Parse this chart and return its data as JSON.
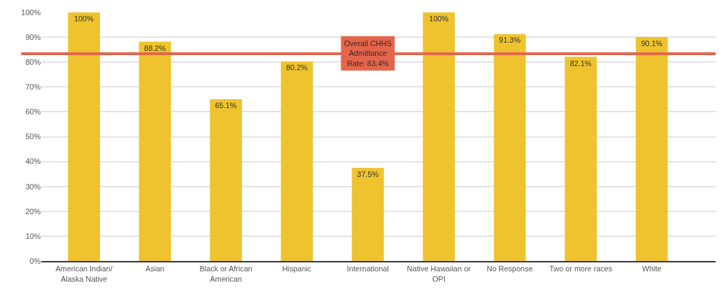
{
  "chart_data": {
    "type": "bar",
    "categories": [
      "American Indian/ Alaska Native",
      "Asian",
      "Black or African American",
      "Hispanic",
      "International",
      "Native Hawaiian or OPI",
      "No Response",
      "Two or more races",
      "White"
    ],
    "values": [
      100,
      88.2,
      65.1,
      80.2,
      37.5,
      100,
      91.3,
      82.1,
      90.1
    ],
    "value_labels": [
      "100%",
      "88.2%",
      "65.1%",
      "80.2%",
      "37.5%",
      "100%",
      "91.3%",
      "82.1%",
      "90.1%"
    ],
    "color": "#eec32d",
    "ylim": [
      0,
      100
    ],
    "yticks": [
      {
        "value": 0,
        "label": "0%"
      },
      {
        "value": 10,
        "label": "10%"
      },
      {
        "value": 20,
        "label": "20%"
      },
      {
        "value": 30,
        "label": "30%"
      },
      {
        "value": 40,
        "label": "40%"
      },
      {
        "value": 50,
        "label": "50%"
      },
      {
        "value": 60,
        "label": "60%"
      },
      {
        "value": 70,
        "label": "70%"
      },
      {
        "value": 80,
        "label": "80%"
      },
      {
        "value": 90,
        "label": "90%"
      },
      {
        "value": 100,
        "label": "100%"
      }
    ],
    "ref_lines": [
      {
        "axis": "y",
        "value": 83.4,
        "label": "Overall CHHS Admittance Rate: 83.4%",
        "color": "#e4654c"
      }
    ],
    "grid": "y",
    "legend": false
  }
}
